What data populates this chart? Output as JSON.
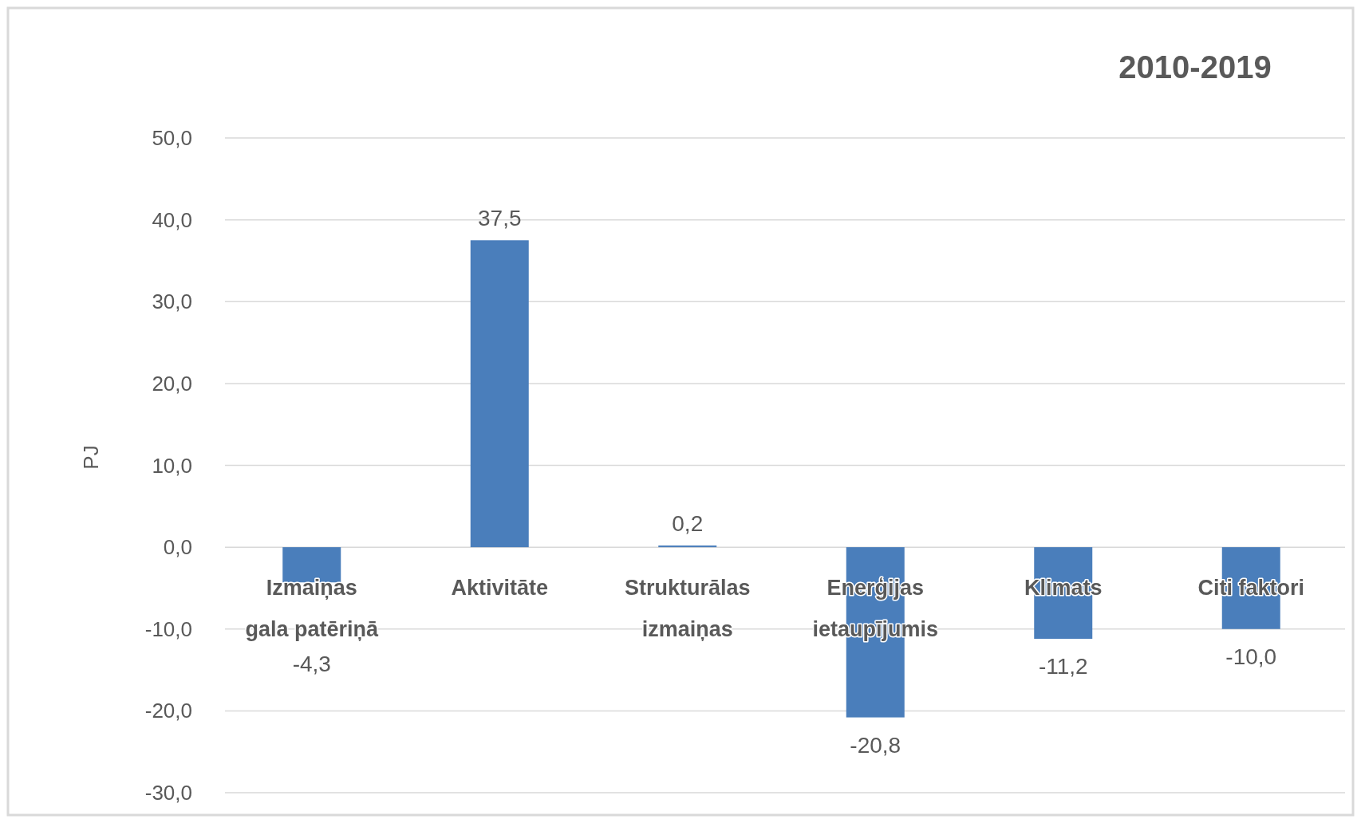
{
  "chart_data": {
    "type": "bar",
    "title": "2010-2019",
    "ylabel": "PJ",
    "categories": [
      "Izmaiņas gala patēriņā",
      "Aktivitāte",
      "Strukturālas izmaiņas",
      "Enerģijas ietaupījumis",
      "Klimats",
      "Citi faktori"
    ],
    "values": [
      -4.3,
      37.5,
      0.2,
      -20.8,
      -11.2,
      -10.0
    ],
    "value_labels": [
      "-4,3",
      "37,5",
      "0,2",
      "-20,8",
      "-11,2",
      "-10,0"
    ],
    "color": "#4a7ebb",
    "ylim": [
      -30,
      50
    ],
    "yticks": [
      {
        "value": -30,
        "label": "-30,0"
      },
      {
        "value": -20,
        "label": "-20,0"
      },
      {
        "value": -10,
        "label": "-10,0"
      },
      {
        "value": 0,
        "label": "0,0"
      },
      {
        "value": 10,
        "label": "10,0"
      },
      {
        "value": 20,
        "label": "20,0"
      },
      {
        "value": 30,
        "label": "30,0"
      },
      {
        "value": 40,
        "label": "40,0"
      },
      {
        "value": 50,
        "label": "50,0"
      }
    ],
    "grid": "y"
  }
}
